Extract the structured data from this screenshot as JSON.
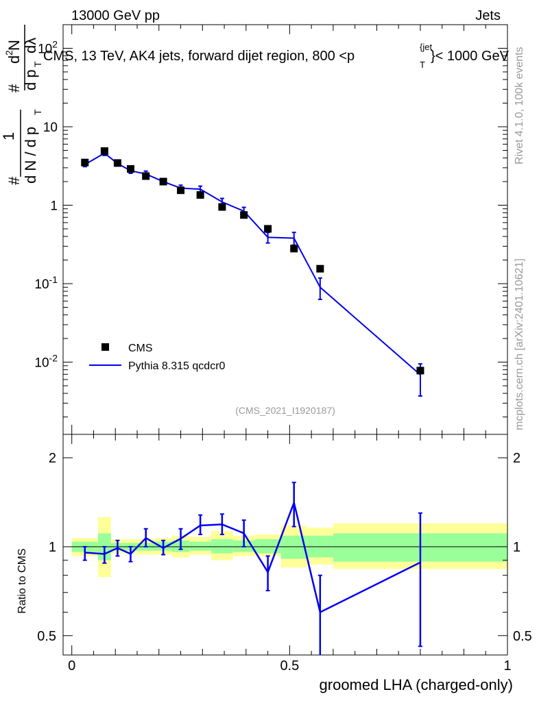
{
  "header": {
    "left": "13000 GeV pp",
    "right": "Jets",
    "side_rivet": "Rivet 4.1.0,  100k events",
    "side_ref": "mcplots.cern.ch [arXiv:2401.10621]",
    "analysis_id": "(CMS_2021_I1920187)"
  },
  "colors": {
    "mc": "#0000ee",
    "band_inner": "#99ff99",
    "band_outer": "#ffff99",
    "data": "#000000"
  },
  "chart_data": [
    {
      "type": "scatter",
      "title_parts": {
        "prefix": "CMS, 13 TeV, AK4 jets, forward dijet region, 800 <p",
        "sup": "{jet",
        "sub": "T",
        "suffix": "}< 1000 GeV"
      },
      "ylabel_parts": {
        "hash": "#",
        "one": "1",
        "dN_dpT": "d N / d p",
        "dpT_sub": "T",
        "d2N_numer": "d",
        "d2N_sup": "2",
        "d2N_N": "N",
        "denom": "d p",
        "denom_sub": "T",
        "dlambda": "dλ"
      },
      "yscale": "log",
      "ylim": [
        0.0012,
        200
      ],
      "xlim": [
        -0.02,
        1.0
      ],
      "yticks": [
        {
          "base": "10",
          "exp": "-2",
          "value": 0.01
        },
        {
          "base": "10",
          "exp": "-1",
          "value": 0.1
        },
        {
          "base": "1",
          "exp": "",
          "value": 1
        },
        {
          "base": "10",
          "exp": "",
          "value": 10
        },
        {
          "base": "10",
          "exp": "2",
          "value": 100
        }
      ],
      "legend": {
        "position": "bottom-left",
        "entries": [
          "CMS",
          "Pythia 8.315 qcdcr0"
        ]
      },
      "series": [
        {
          "name": "CMS",
          "kind": "markers",
          "x": [
            0.03,
            0.075,
            0.105,
            0.135,
            0.17,
            0.21,
            0.25,
            0.295,
            0.345,
            0.395,
            0.45,
            0.51,
            0.57,
            0.8
          ],
          "y": [
            3.5,
            4.9,
            3.45,
            2.9,
            2.35,
            2.0,
            1.55,
            1.35,
            0.95,
            0.75,
            0.5,
            0.28,
            0.155,
            0.0078
          ]
        },
        {
          "name": "Pythia 8.315 qcdcr0",
          "kind": "line",
          "x": [
            0.03,
            0.075,
            0.105,
            0.135,
            0.17,
            0.21,
            0.25,
            0.295,
            0.345,
            0.395,
            0.45,
            0.51,
            0.57,
            0.8
          ],
          "y": [
            3.3,
            4.6,
            3.4,
            2.75,
            2.5,
            2.0,
            1.65,
            1.6,
            1.1,
            0.84,
            0.39,
            0.38,
            0.09,
            0.0069
          ],
          "err_lo": [
            3.1,
            4.3,
            3.2,
            2.55,
            2.3,
            1.88,
            1.5,
            1.45,
            0.98,
            0.74,
            0.33,
            0.31,
            0.063,
            0.0037
          ],
          "err_hi": [
            3.5,
            4.9,
            3.6,
            2.95,
            2.72,
            2.12,
            1.8,
            1.75,
            1.22,
            0.94,
            0.45,
            0.45,
            0.118,
            0.0095
          ]
        }
      ]
    },
    {
      "type": "line",
      "ylabel": "Ratio to CMS",
      "xlabel": "groomed LHA (charged-only)",
      "yscale": "log",
      "ylim": [
        0.43,
        2.4
      ],
      "xlim": [
        -0.02,
        1.0
      ],
      "yticks": [
        {
          "label": "0.5",
          "value": 0.5
        },
        {
          "label": "1",
          "value": 1
        },
        {
          "label": "2",
          "value": 2
        }
      ],
      "xticks": [
        {
          "label": "0",
          "value": 0
        },
        {
          "label": "0.5",
          "value": 0.5
        },
        {
          "label": "1",
          "value": 1
        }
      ],
      "bands": {
        "edges": [
          0.0,
          0.06,
          0.09,
          0.12,
          0.15,
          0.19,
          0.23,
          0.27,
          0.32,
          0.37,
          0.42,
          0.48,
          0.54,
          0.6,
          1.0
        ],
        "inner_lo": [
          0.96,
          0.9,
          0.97,
          0.97,
          0.97,
          0.97,
          0.96,
          0.97,
          0.95,
          0.96,
          0.95,
          0.91,
          0.92,
          0.89
        ],
        "inner_hi": [
          1.04,
          1.11,
          1.03,
          1.03,
          1.03,
          1.04,
          1.05,
          1.04,
          1.06,
          1.05,
          1.06,
          1.09,
          1.09,
          1.11
        ],
        "outer_lo": [
          0.93,
          0.79,
          0.95,
          0.95,
          0.94,
          0.94,
          0.92,
          0.94,
          0.9,
          0.93,
          0.93,
          0.85,
          0.87,
          0.84
        ],
        "outer_hi": [
          1.07,
          1.26,
          1.06,
          1.06,
          1.06,
          1.07,
          1.09,
          1.08,
          1.13,
          1.09,
          1.1,
          1.18,
          1.16,
          1.2
        ]
      },
      "series": [
        {
          "name": "Pythia 8.315 qcdcr0 / CMS",
          "x": [
            0.03,
            0.075,
            0.105,
            0.135,
            0.17,
            0.21,
            0.25,
            0.295,
            0.345,
            0.395,
            0.45,
            0.51,
            0.57,
            0.8
          ],
          "y": [
            0.955,
            0.945,
            0.99,
            0.945,
            1.07,
            0.99,
            1.065,
            1.18,
            1.19,
            1.11,
            0.82,
            1.41,
            0.6,
            0.885
          ],
          "err_lo": [
            0.9,
            0.88,
            0.93,
            0.89,
            1.0,
            0.94,
            0.98,
            1.1,
            1.1,
            1.0,
            0.71,
            1.17,
            0.42,
            0.46
          ],
          "err_hi": [
            1.0,
            1.0,
            1.05,
            1.0,
            1.15,
            1.05,
            1.15,
            1.28,
            1.29,
            1.23,
            0.93,
            1.65,
            0.8,
            1.3
          ]
        }
      ]
    }
  ]
}
